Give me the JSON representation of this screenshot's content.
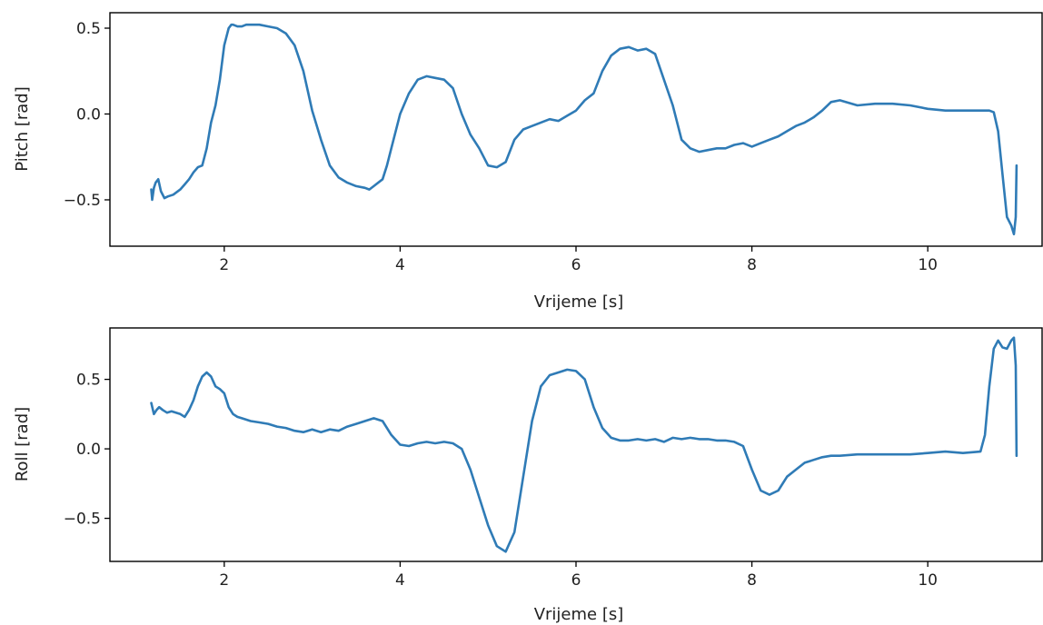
{
  "figure": {
    "line_color": "#2f7bb6"
  },
  "chart_data": [
    {
      "type": "line",
      "title": "",
      "xlabel": "Vrijeme [s]",
      "ylabel": "Pitch [rad]",
      "xlim": [
        0.7,
        11.3
      ],
      "ylim": [
        -0.77,
        0.59
      ],
      "xticks": [
        2,
        4,
        6,
        8,
        10
      ],
      "xtick_labels": [
        "2",
        "4",
        "6",
        "8",
        "10"
      ],
      "yticks": [
        -0.5,
        0.0,
        0.5
      ],
      "ytick_labels": [
        "−0.5",
        "0.0",
        "0.5"
      ],
      "grid": false,
      "series": [
        {
          "x": [
            1.17,
            1.18,
            1.2,
            1.22,
            1.25,
            1.28,
            1.32,
            1.36,
            1.42,
            1.5,
            1.55,
            1.6,
            1.65,
            1.7,
            1.75,
            1.8,
            1.85,
            1.9,
            1.95,
            2.0,
            2.05,
            2.08,
            2.1,
            2.15,
            2.2,
            2.25,
            2.3,
            2.4,
            2.5,
            2.6,
            2.7,
            2.8,
            2.9,
            3.0,
            3.1,
            3.2,
            3.3,
            3.4,
            3.5,
            3.6,
            3.65,
            3.7,
            3.8,
            3.85,
            3.9,
            4.0,
            4.1,
            4.2,
            4.3,
            4.4,
            4.5,
            4.6,
            4.7,
            4.8,
            4.9,
            5.0,
            5.1,
            5.2,
            5.3,
            5.4,
            5.5,
            5.6,
            5.7,
            5.8,
            5.9,
            6.0,
            6.1,
            6.2,
            6.3,
            6.4,
            6.5,
            6.6,
            6.7,
            6.8,
            6.9,
            7.0,
            7.1,
            7.2,
            7.3,
            7.4,
            7.5,
            7.6,
            7.7,
            7.8,
            7.9,
            8.0,
            8.1,
            8.2,
            8.3,
            8.4,
            8.5,
            8.6,
            8.7,
            8.8,
            8.9,
            9.0,
            9.2,
            9.4,
            9.6,
            9.8,
            10.0,
            10.2,
            10.4,
            10.5,
            10.6,
            10.7,
            10.75,
            10.8,
            10.85,
            10.9,
            10.95,
            10.98,
            11.0,
            11.01
          ],
          "y": [
            -0.44,
            -0.5,
            -0.43,
            -0.4,
            -0.38,
            -0.45,
            -0.49,
            -0.48,
            -0.47,
            -0.44,
            -0.41,
            -0.38,
            -0.34,
            -0.31,
            -0.3,
            -0.2,
            -0.05,
            0.05,
            0.2,
            0.4,
            0.5,
            0.52,
            0.52,
            0.51,
            0.51,
            0.52,
            0.52,
            0.52,
            0.51,
            0.5,
            0.47,
            0.4,
            0.25,
            0.02,
            -0.15,
            -0.3,
            -0.37,
            -0.4,
            -0.42,
            -0.43,
            -0.44,
            -0.42,
            -0.38,
            -0.3,
            -0.2,
            0.0,
            0.12,
            0.2,
            0.22,
            0.21,
            0.2,
            0.15,
            0.0,
            -0.12,
            -0.2,
            -0.3,
            -0.31,
            -0.28,
            -0.15,
            -0.09,
            -0.07,
            -0.05,
            -0.03,
            -0.04,
            -0.01,
            0.02,
            0.08,
            0.12,
            0.25,
            0.34,
            0.38,
            0.39,
            0.37,
            0.38,
            0.35,
            0.2,
            0.05,
            -0.15,
            -0.2,
            -0.22,
            -0.21,
            -0.2,
            -0.2,
            -0.18,
            -0.17,
            -0.19,
            -0.17,
            -0.15,
            -0.13,
            -0.1,
            -0.07,
            -0.05,
            -0.02,
            0.02,
            0.07,
            0.08,
            0.05,
            0.06,
            0.06,
            0.05,
            0.03,
            0.02,
            0.02,
            0.02,
            0.02,
            0.02,
            0.01,
            -0.1,
            -0.35,
            -0.6,
            -0.65,
            -0.7,
            -0.6,
            -0.3
          ]
        }
      ]
    },
    {
      "type": "line",
      "title": "",
      "xlabel": "Vrijeme [s]",
      "ylabel": "Roll [rad]",
      "xlim": [
        0.7,
        11.3
      ],
      "ylim": [
        -0.81,
        0.87
      ],
      "xticks": [
        2,
        4,
        6,
        8,
        10
      ],
      "xtick_labels": [
        "2",
        "4",
        "6",
        "8",
        "10"
      ],
      "yticks": [
        -0.5,
        0.0,
        0.5
      ],
      "ytick_labels": [
        "−0.5",
        "0.0",
        "0.5"
      ],
      "grid": false,
      "series": [
        {
          "x": [
            1.17,
            1.2,
            1.23,
            1.26,
            1.3,
            1.35,
            1.4,
            1.45,
            1.5,
            1.55,
            1.6,
            1.65,
            1.7,
            1.75,
            1.8,
            1.85,
            1.9,
            1.95,
            2.0,
            2.05,
            2.1,
            2.15,
            2.2,
            2.3,
            2.4,
            2.5,
            2.6,
            2.7,
            2.8,
            2.9,
            3.0,
            3.1,
            3.2,
            3.3,
            3.4,
            3.5,
            3.6,
            3.7,
            3.8,
            3.9,
            4.0,
            4.1,
            4.2,
            4.3,
            4.4,
            4.5,
            4.6,
            4.7,
            4.8,
            4.9,
            5.0,
            5.1,
            5.2,
            5.3,
            5.4,
            5.5,
            5.6,
            5.7,
            5.8,
            5.9,
            6.0,
            6.1,
            6.2,
            6.3,
            6.4,
            6.5,
            6.6,
            6.7,
            6.8,
            6.9,
            7.0,
            7.1,
            7.2,
            7.3,
            7.4,
            7.5,
            7.6,
            7.7,
            7.8,
            7.9,
            8.0,
            8.1,
            8.2,
            8.3,
            8.4,
            8.5,
            8.6,
            8.7,
            8.8,
            8.9,
            9.0,
            9.2,
            9.4,
            9.6,
            9.8,
            10.0,
            10.2,
            10.4,
            10.6,
            10.65,
            10.7,
            10.75,
            10.8,
            10.85,
            10.9,
            10.95,
            10.98,
            11.0,
            11.01
          ],
          "y": [
            0.33,
            0.25,
            0.28,
            0.3,
            0.28,
            0.26,
            0.27,
            0.26,
            0.25,
            0.23,
            0.28,
            0.35,
            0.45,
            0.52,
            0.55,
            0.52,
            0.45,
            0.43,
            0.4,
            0.3,
            0.25,
            0.23,
            0.22,
            0.2,
            0.19,
            0.18,
            0.16,
            0.15,
            0.13,
            0.12,
            0.14,
            0.12,
            0.14,
            0.13,
            0.16,
            0.18,
            0.2,
            0.22,
            0.2,
            0.1,
            0.03,
            0.02,
            0.04,
            0.05,
            0.04,
            0.05,
            0.04,
            0.0,
            -0.15,
            -0.35,
            -0.55,
            -0.7,
            -0.74,
            -0.6,
            -0.2,
            0.2,
            0.45,
            0.53,
            0.55,
            0.57,
            0.56,
            0.5,
            0.3,
            0.15,
            0.08,
            0.06,
            0.06,
            0.07,
            0.06,
            0.07,
            0.05,
            0.08,
            0.07,
            0.08,
            0.07,
            0.07,
            0.06,
            0.06,
            0.05,
            0.02,
            -0.15,
            -0.3,
            -0.33,
            -0.3,
            -0.2,
            -0.15,
            -0.1,
            -0.08,
            -0.06,
            -0.05,
            -0.05,
            -0.04,
            -0.04,
            -0.04,
            -0.04,
            -0.03,
            -0.02,
            -0.03,
            -0.02,
            0.1,
            0.45,
            0.72,
            0.78,
            0.73,
            0.72,
            0.78,
            0.8,
            0.6,
            -0.05
          ]
        }
      ]
    }
  ]
}
